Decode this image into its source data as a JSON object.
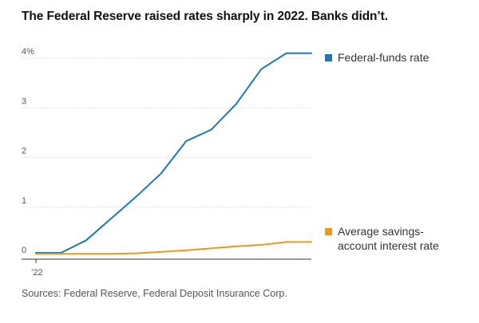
{
  "title": "The Federal Reserve raised rates sharply in 2022. Banks didn’t.",
  "source": "Sources: Federal Reserve, Federal Deposit Insurance Corp.",
  "colors": {
    "fed_funds": "#1f77b4",
    "savings": "#e69a1f",
    "grid": "#d9d9d9",
    "axis": "#333333"
  },
  "chart_data": {
    "type": "line",
    "title": "The Federal Reserve raised rates sharply in 2022. Banks didn’t.",
    "xlabel": "",
    "ylabel": "",
    "x_tick_labels": [
      "’22"
    ],
    "y_tick_labels": [
      "0",
      "1",
      "2",
      "3",
      "4%"
    ],
    "y_ticks": [
      0,
      1,
      2,
      3,
      4
    ],
    "ylim": [
      0,
      4.2
    ],
    "xlim": [
      0,
      11
    ],
    "grid": true,
    "legend_position": "right",
    "x": [
      0,
      1,
      2,
      3,
      4,
      5,
      6,
      7,
      8,
      9,
      10,
      11
    ],
    "series": [
      {
        "name": "Federal-funds rate",
        "legend_label": "Federal-funds rate",
        "values": [
          0.08,
          0.08,
          0.33,
          0.77,
          1.21,
          1.68,
          2.33,
          2.56,
          3.08,
          3.78,
          4.1,
          4.1
        ]
      },
      {
        "name": "Average savings-account interest rate",
        "legend_lines": [
          "Average savings-",
          "account interest rate"
        ],
        "values": [
          0.06,
          0.06,
          0.06,
          0.06,
          0.07,
          0.1,
          0.13,
          0.17,
          0.21,
          0.24,
          0.3,
          0.3
        ]
      }
    ]
  }
}
